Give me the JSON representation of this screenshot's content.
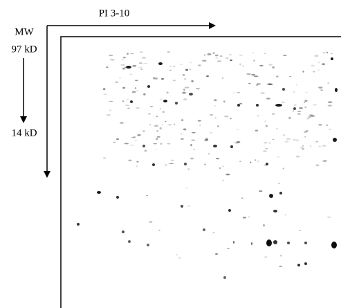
{
  "labels": {
    "pi_range": "PI 3-10",
    "mw": "MW",
    "mw_top": "97 kD",
    "mw_bottom": "14 kD"
  }
}
